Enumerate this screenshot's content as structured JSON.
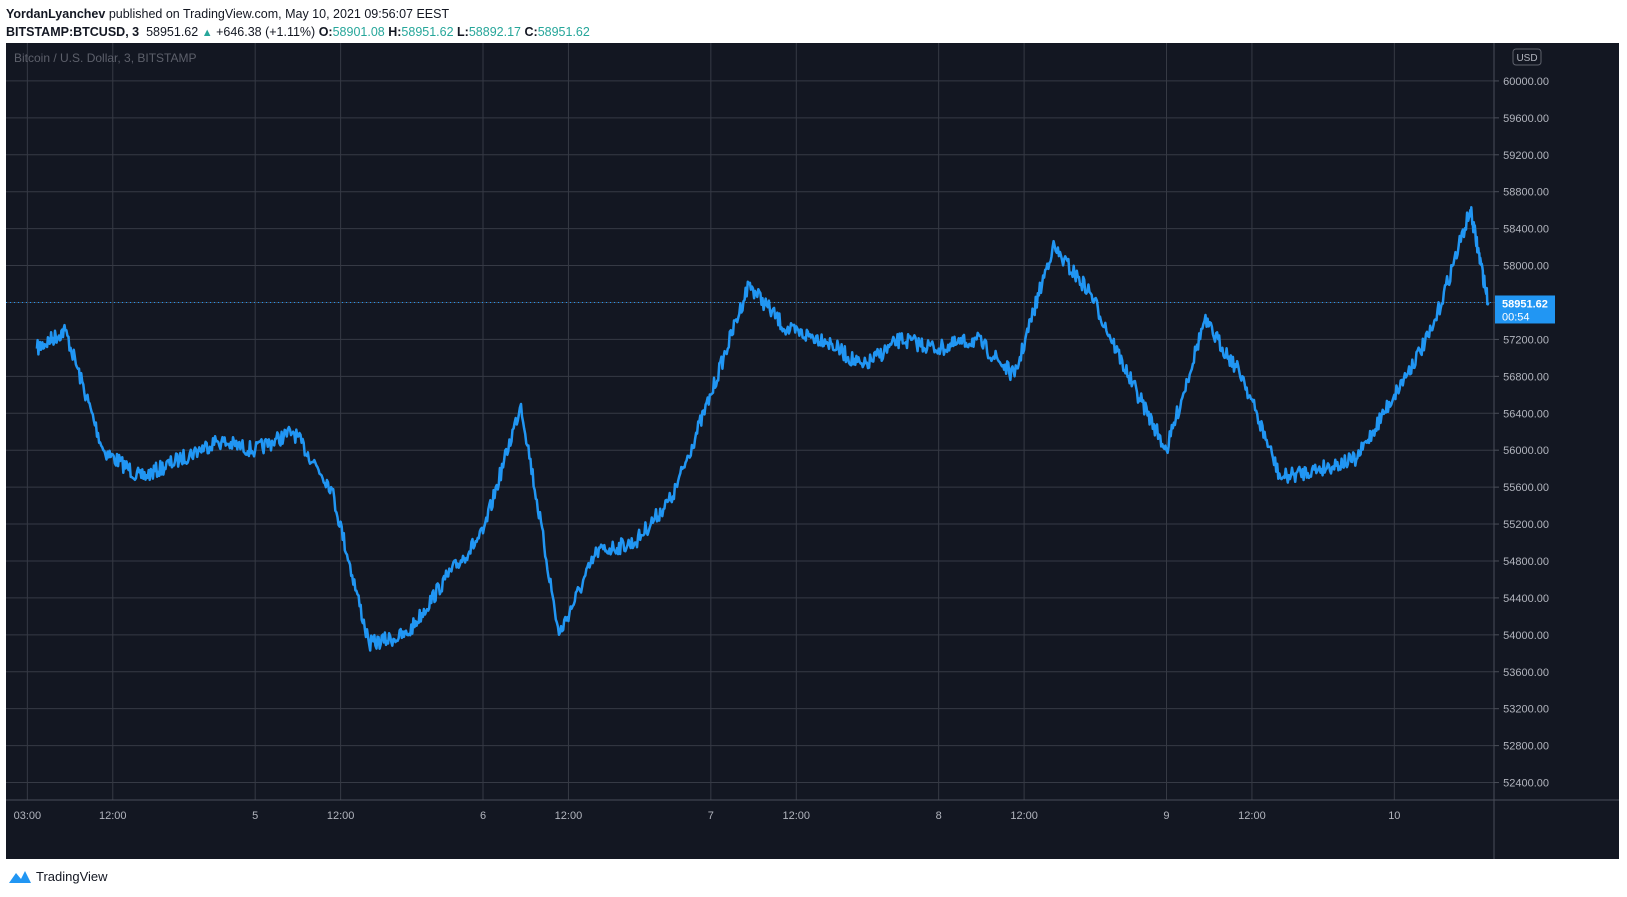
{
  "header": {
    "author": "YordanLyanchev",
    "published_text": "published on TradingView.com, May 10, 2021 09:56:07 EEST",
    "symbol": "BITSTAMP:BTCUSD, 3",
    "last": "58951.62",
    "change": "+646.38 (+1.11%)",
    "o_label": "O:",
    "o_value": "58901.08",
    "h_label": "H:",
    "h_value": "58951.62",
    "l_label": "L:",
    "l_value": "58892.17",
    "c_label": "C:",
    "c_value": "58951.62"
  },
  "legend": "Bitcoin / U.S. Dollar, 3, BITSTAMP",
  "currency": "USD",
  "price_tag": {
    "price": "58951.62",
    "countdown": "00:54"
  },
  "footer": {
    "brand": "TradingView"
  },
  "colors": {
    "background": "#131722",
    "line": "#2196f3",
    "grid": "#363a45",
    "text": "#b2b5be",
    "up": "#26a69a"
  },
  "chart_data": {
    "type": "line",
    "title": "Bitcoin / U.S. Dollar, 3, BITSTAMP",
    "ylim": [
      52200,
      60400
    ],
    "y_ticks": [
      52400,
      52800,
      53200,
      53600,
      54000,
      54400,
      54800,
      55200,
      55600,
      56000,
      56400,
      56800,
      57200,
      57600,
      58000,
      58400,
      58800,
      59200,
      59600,
      60000
    ],
    "x_ticks": [
      "03:00",
      "12:00",
      "5",
      "12:00",
      "6",
      "12:00",
      "7",
      "12:00",
      "8",
      "12:00",
      "9",
      "12:00",
      "10"
    ],
    "series": [
      {
        "x": [
          "05-04 01:00",
          "05-04 04:00",
          "05-04 08:00",
          "05-04 12:00",
          "05-04 16:00",
          "05-04 20:00",
          "05-05 00:00",
          "05-05 04:00",
          "05-05 08:00",
          "05-05 12:00",
          "05-05 16:00",
          "05-05 20:00",
          "05-06 00:00",
          "05-06 04:00",
          "05-06 08:00",
          "05-06 12:00",
          "05-06 16:00",
          "05-06 20:00",
          "05-07 00:00",
          "05-07 04:00",
          "05-07 08:00",
          "05-07 12:00",
          "05-07 16:00",
          "05-07 20:00",
          "05-08 00:00",
          "05-08 04:00",
          "05-08 08:00",
          "05-08 12:00",
          "05-08 16:00",
          "05-08 20:00",
          "05-09 00:00",
          "05-09 04:00",
          "05-09 08:00",
          "05-09 12:00",
          "05-09 16:00",
          "05-09 20:00",
          "05-10 00:00",
          "05-10 04:00",
          "05-10 08:00",
          "05-10 09:54"
        ],
        "values": [
          57100,
          57300,
          56000,
          55700,
          55900,
          56100,
          56000,
          56200,
          55600,
          53900,
          54000,
          54600,
          55100,
          56500,
          54000,
          54900,
          55000,
          55500,
          56600,
          57800,
          57300,
          57200,
          56900,
          57200,
          57100,
          57200,
          56800,
          58200,
          57700,
          56800,
          56000,
          57400,
          56800,
          55700,
          55800,
          55900,
          56600,
          57300,
          58600,
          57600
        ]
      }
    ]
  }
}
